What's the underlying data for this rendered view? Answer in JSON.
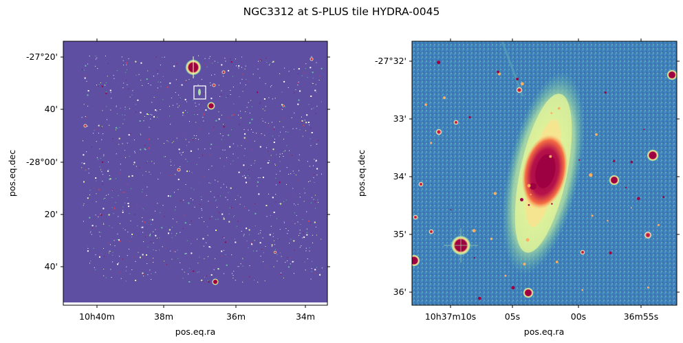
{
  "figure": {
    "title": "NGC3312 at S-PLUS tile HYDRA-0045"
  },
  "left_panel": {
    "xlabel": "pos.eq.ra",
    "ylabel": "pos.eq.dec",
    "x_ticks": [
      "10h40m",
      "38m",
      "36m",
      "34m"
    ],
    "y_ticks": [
      "-27°20'",
      "40'",
      "-28°00'",
      "20'",
      "40'"
    ],
    "background_color": "#5e4fa2",
    "zoom_box": "white rectangle marking NGC3312 cutout"
  },
  "right_panel": {
    "xlabel": "pos.eq.ra",
    "ylabel": "pos.eq.dec",
    "x_ticks": [
      "10h37m10s",
      "05s",
      "00s",
      "36m55s"
    ],
    "y_ticks": [
      "-27°32'",
      "33'",
      "34'",
      "35'",
      "36'"
    ],
    "colormap": "Spectral_r",
    "colormap_colors": [
      "#5e4fa2",
      "#3288bd",
      "#66c2a5",
      "#abdda4",
      "#e6f598",
      "#fee08b",
      "#fdae61",
      "#f46d43",
      "#d53e4f",
      "#9e0142"
    ]
  }
}
